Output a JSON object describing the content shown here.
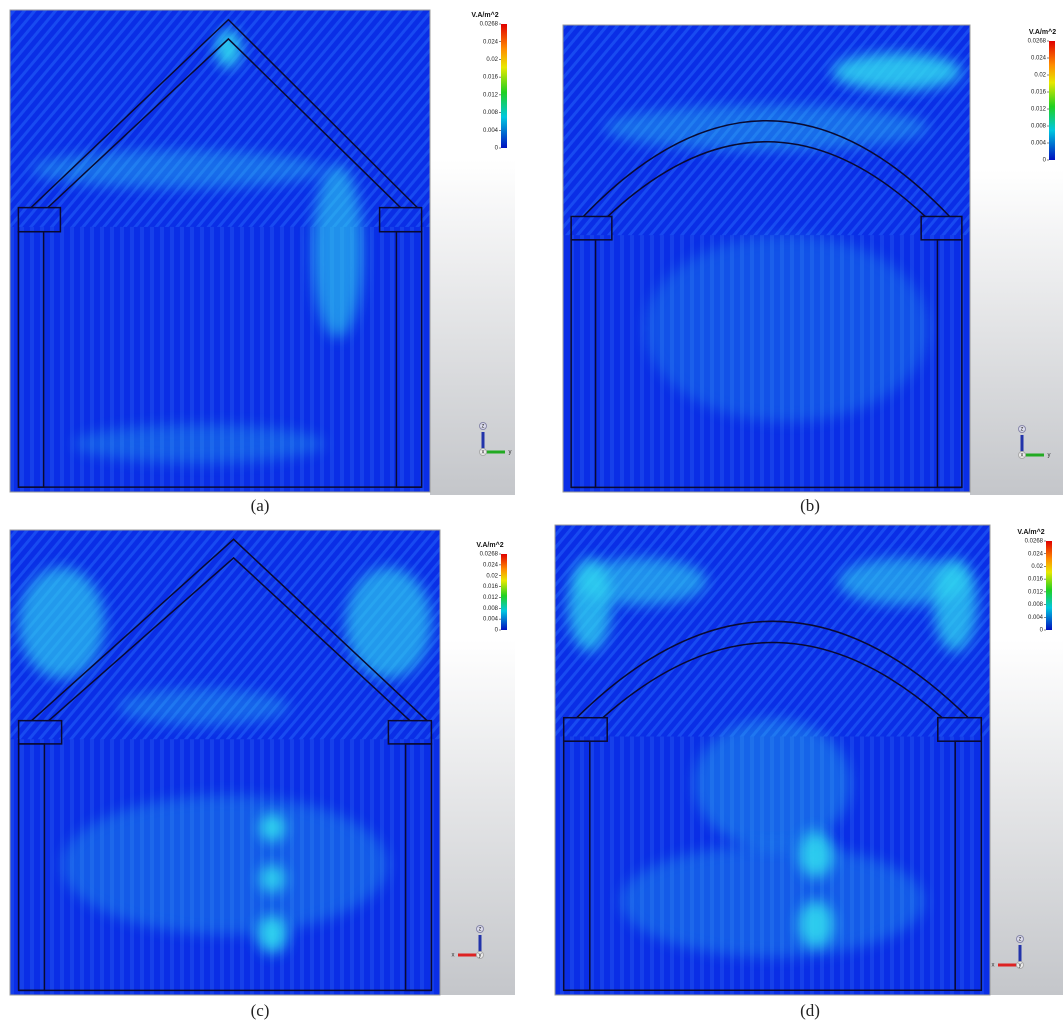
{
  "panels": [
    {
      "caption": "(a)",
      "colorbar": {
        "unit": "V.A/m^2",
        "ticks": [
          "0.0268",
          "0.024",
          "0.02",
          "0.016",
          "0.012",
          "0.008",
          "0.004",
          "0"
        ]
      },
      "triad": {
        "up": "z",
        "x": "x",
        "y": "y"
      }
    },
    {
      "caption": "(b)",
      "colorbar": {
        "unit": "V.A/m^2",
        "ticks": [
          "0.0268",
          "0.024",
          "0.02",
          "0.016",
          "0.012",
          "0.008",
          "0.004",
          "0"
        ]
      },
      "triad": {
        "up": "z",
        "x": "x",
        "y": "y"
      }
    },
    {
      "caption": "(c)",
      "colorbar": {
        "unit": "V.A/m^2",
        "ticks": [
          "0.0268",
          "0.024",
          "0.02",
          "0.016",
          "0.012",
          "0.008",
          "0.004",
          "0"
        ]
      },
      "triad": {
        "up": "z",
        "x": "x",
        "y": "y"
      }
    },
    {
      "caption": "(d)",
      "colorbar": {
        "unit": "V.A/m^2",
        "ticks": [
          "0.0268",
          "0.024",
          "0.02",
          "0.016",
          "0.012",
          "0.008",
          "0.004",
          "0"
        ]
      },
      "triad": {
        "up": "z",
        "x": "x",
        "y": "y"
      }
    }
  ]
}
